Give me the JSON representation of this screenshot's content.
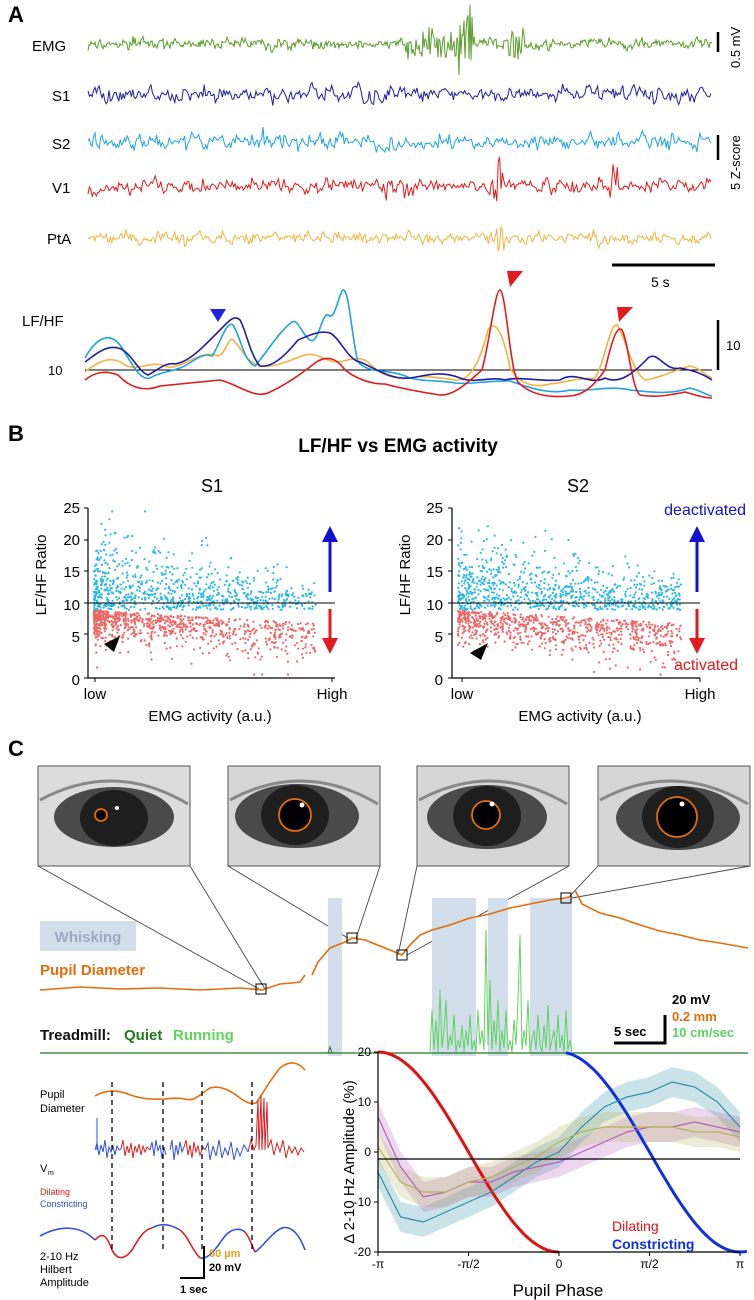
{
  "panels": {
    "A": {
      "letter": "A",
      "traces": [
        {
          "label": "EMG",
          "color": "#5a9e2a"
        },
        {
          "label": "S1",
          "color": "#1c1ca6"
        },
        {
          "label": "S2",
          "color": "#1ba3e2"
        },
        {
          "label": "V1",
          "color": "#e31a1c"
        },
        {
          "label": "PtA",
          "color": "#f2b43c"
        }
      ],
      "scalebars": {
        "emg": "0.5 mV",
        "z": "5 Z-score",
        "time": "5 s"
      },
      "lfhf": {
        "label": "LF/HF",
        "threshold_label": "10",
        "scale_label": "10",
        "arrow_colors": {
          "blue": "#2222dd",
          "red": "#e31a1c"
        }
      }
    },
    "B": {
      "letter": "B",
      "title": "LF/HF vs EMG activity",
      "threshold": 10,
      "colors": {
        "above": "#2ab8e6",
        "below": "#f06464",
        "deactivated": "#1010d0",
        "activated": "#e31a1c"
      },
      "plots": [
        {
          "name": "S1",
          "ylabel": "LF/HF Ratio",
          "xlabel": "EMG activity (a.u.)",
          "xticks": [
            "low",
            "High"
          ],
          "yticks": [
            "0",
            "5",
            "10",
            "15",
            "20",
            "25"
          ],
          "ylim": [
            0,
            25
          ]
        },
        {
          "name": "S2",
          "ylabel": "LF/HF Ratio",
          "xlabel": "EMG activity (a.u.)",
          "xticks": [
            "low",
            "High"
          ],
          "yticks": [
            "0",
            "5",
            "10",
            "15",
            "20",
            "25"
          ],
          "ylim": [
            0,
            25
          ]
        }
      ],
      "annotations": {
        "deactivated": "deactivated",
        "activated": "activated"
      }
    },
    "C": {
      "letter": "C",
      "whisking_label": "Whisking",
      "pupil_label": "Pupil Diameter",
      "treadmill_label": "Treadmill:",
      "quiet_label": "Quiet",
      "running_label": "Running",
      "scalebars": {
        "time": "5 sec",
        "v": "20 mV",
        "pupil": "0.2 mm",
        "speed": "10 cm/sec"
      },
      "colors": {
        "pupil": "#e46c0a",
        "quiet": "#1f7a1f",
        "running": "#5fd35f",
        "whisk": "#d2deec"
      },
      "bottom_left": {
        "pupil_label_1": "Pupil",
        "pupil_label_2": "Diameter",
        "vm_label": "V",
        "vm_sub": "m",
        "dilating": "Dilating",
        "constricting": "Constricting",
        "hilbert_1": "2-10 Hz",
        "hilbert_2": "Hilbert",
        "hilbert_3": "Amplitude",
        "scale_pupil": "50 µm",
        "scale_v": "20 mV",
        "scale_t": "1 sec"
      }
    }
  },
  "chart_data": {
    "type": "line",
    "title": "",
    "xlabel": "Pupil Phase",
    "ylabel": "Δ 2-10 Hz Amplitude (%)",
    "x_ticks": [
      "-π",
      "-π/2",
      "0",
      "π/2",
      "π"
    ],
    "y_ticks": [
      "-20",
      "-10",
      "0",
      "10",
      "20"
    ],
    "xlim": [
      -3.1416,
      3.1416
    ],
    "ylim": [
      -20,
      20
    ],
    "x": [
      -3.1416,
      -2.7489,
      -2.3562,
      -1.9635,
      -1.5708,
      -1.1781,
      -0.7854,
      -0.3927,
      0.0,
      0.3927,
      0.7854,
      1.1781,
      1.5708,
      1.9635,
      2.3562,
      2.7489,
      3.1416
    ],
    "series": [
      {
        "name": "blue",
        "color": "#2a8fa8",
        "values": [
          -4,
          -13,
          -14,
          -12,
          -10,
          -8,
          -5,
          -2,
          0,
          5,
          9,
          11,
          12,
          14,
          13,
          10,
          5
        ]
      },
      {
        "name": "magenta",
        "color": "#b35fbf",
        "values": [
          7,
          -3,
          -9,
          -8,
          -6,
          -6,
          -4,
          -3,
          -2,
          0,
          2,
          4,
          5,
          5,
          6,
          5,
          4
        ]
      },
      {
        "name": "olive",
        "color": "#b5b25a",
        "values": [
          1,
          -6,
          -8,
          -8,
          -6,
          -5,
          -3,
          -1,
          2,
          4,
          5,
          5,
          5,
          5,
          4,
          4,
          3
        ]
      }
    ],
    "legend": {
      "dilating": "Dilating",
      "constricting": "Constricting"
    }
  }
}
